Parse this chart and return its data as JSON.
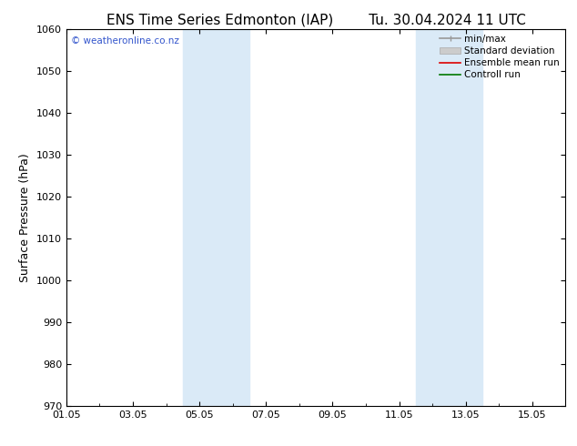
{
  "title_left": "ENS Time Series Edmonton (IAP)",
  "title_right": "Tu. 30.04.2024 11 UTC",
  "ylabel": "Surface Pressure (hPa)",
  "ylim": [
    970,
    1060
  ],
  "yticks": [
    970,
    980,
    990,
    1000,
    1010,
    1020,
    1030,
    1040,
    1050,
    1060
  ],
  "xlim": [
    0,
    15
  ],
  "xtick_labels": [
    "01.05",
    "03.05",
    "05.05",
    "07.05",
    "09.05",
    "11.05",
    "13.05",
    "15.05"
  ],
  "xtick_positions": [
    0,
    2,
    4,
    6,
    8,
    10,
    12,
    14
  ],
  "shaded_regions": [
    {
      "x_start": 3.5,
      "x_end": 5.5
    },
    {
      "x_start": 10.5,
      "x_end": 12.5
    }
  ],
  "shaded_color": "#daeaf7",
  "background_color": "#ffffff",
  "watermark_text": "© weatheronline.co.nz",
  "watermark_color": "#3355cc",
  "legend_labels": [
    "min/max",
    "Standard deviation",
    "Ensemble mean run",
    "Controll run"
  ],
  "legend_colors": [
    "#999999",
    "#cccccc",
    "#dd0000",
    "#007700"
  ],
  "title_fontsize": 11,
  "axis_label_fontsize": 9,
  "tick_fontsize": 8,
  "legend_fontsize": 7.5
}
